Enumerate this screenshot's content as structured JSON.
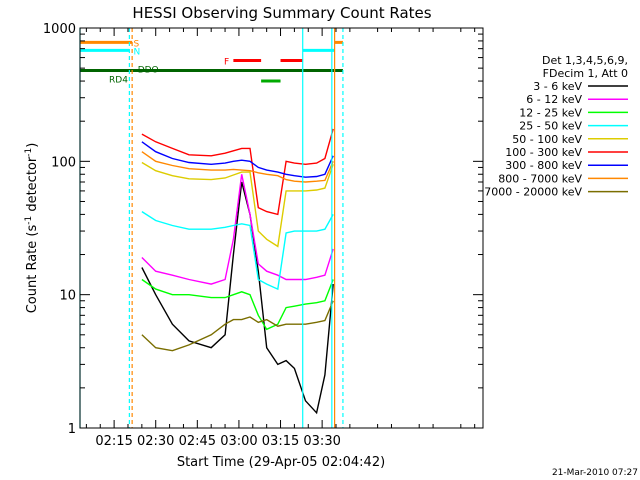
{
  "chart_data": {
    "type": "line",
    "title": "HESSI Observing Summary Count Rates",
    "xlabel": "Start Time (29-Apr-05 02:04:42)",
    "ylabel_main": "Count Rate (s",
    "ylabel_sup": "-1",
    "ylabel_mid": " detector",
    "ylabel_end": ")",
    "yscale": "log",
    "ylim": [
      1,
      1000
    ],
    "xlim_minutes": [
      2.7,
      148.0
    ],
    "x_ticks": [
      {
        "min": 15,
        "label": "02:15"
      },
      {
        "min": 30,
        "label": "02:30"
      },
      {
        "min": 45,
        "label": "02:45"
      },
      {
        "min": 60,
        "label": "03:00"
      },
      {
        "min": 75,
        "label": "03:15"
      },
      {
        "min": 90,
        "label": "03:30"
      }
    ],
    "y_ticks": [
      {
        "v": 1,
        "label": "1"
      },
      {
        "v": 10,
        "label": "10"
      },
      {
        "v": 100,
        "label": "100"
      },
      {
        "v": 1000,
        "label": "1000"
      }
    ],
    "legend_header": [
      "Det 1,3,4,5,6,9,",
      "FDecim 1, Att 0"
    ],
    "series": [
      {
        "name": "3 - 6 keV",
        "color": "#000000",
        "points": [
          [
            25,
            16
          ],
          [
            30,
            10
          ],
          [
            36,
            6
          ],
          [
            42,
            4.5
          ],
          [
            50,
            4
          ],
          [
            55,
            5
          ],
          [
            58,
            20
          ],
          [
            61,
            70
          ],
          [
            64,
            40
          ],
          [
            67,
            15
          ],
          [
            70,
            4
          ],
          [
            74,
            3
          ],
          [
            77,
            3.2
          ],
          [
            80,
            2.8
          ],
          [
            84,
            1.6
          ],
          [
            88,
            1.3
          ],
          [
            91,
            2.5
          ],
          [
            94,
            12
          ]
        ]
      },
      {
        "name": "6 - 12 keV",
        "color": "#ff00ff",
        "points": [
          [
            25,
            19
          ],
          [
            30,
            15
          ],
          [
            36,
            14
          ],
          [
            42,
            13
          ],
          [
            50,
            12
          ],
          [
            55,
            13
          ],
          [
            58,
            26
          ],
          [
            61,
            80
          ],
          [
            64,
            40
          ],
          [
            67,
            17
          ],
          [
            70,
            15
          ],
          [
            74,
            14
          ],
          [
            77,
            13
          ],
          [
            80,
            13
          ],
          [
            84,
            13
          ],
          [
            88,
            13.5
          ],
          [
            91,
            14
          ],
          [
            94,
            22
          ]
        ]
      },
      {
        "name": "12 - 25 keV",
        "color": "#00ff00",
        "points": [
          [
            25,
            13
          ],
          [
            30,
            11
          ],
          [
            36,
            10
          ],
          [
            42,
            10
          ],
          [
            50,
            9.5
          ],
          [
            55,
            9.5
          ],
          [
            58,
            10
          ],
          [
            61,
            10.5
          ],
          [
            64,
            10
          ],
          [
            67,
            7
          ],
          [
            70,
            5.5
          ],
          [
            74,
            6
          ],
          [
            77,
            8
          ],
          [
            80,
            8.2
          ],
          [
            84,
            8.5
          ],
          [
            88,
            8.7
          ],
          [
            91,
            9
          ],
          [
            94,
            13
          ]
        ]
      },
      {
        "name": "25 - 50 keV",
        "color": "#00ffff",
        "points": [
          [
            25,
            42
          ],
          [
            30,
            36
          ],
          [
            36,
            33
          ],
          [
            42,
            31
          ],
          [
            50,
            31
          ],
          [
            55,
            32
          ],
          [
            58,
            33
          ],
          [
            61,
            34
          ],
          [
            64,
            33
          ],
          [
            67,
            13
          ],
          [
            70,
            12
          ],
          [
            74,
            11
          ],
          [
            77,
            29
          ],
          [
            80,
            30
          ],
          [
            84,
            30
          ],
          [
            88,
            30
          ],
          [
            91,
            31
          ],
          [
            94,
            40
          ]
        ]
      },
      {
        "name": "50 - 100 keV",
        "color": "#ddcc00",
        "points": [
          [
            25,
            98
          ],
          [
            30,
            85
          ],
          [
            36,
            78
          ],
          [
            42,
            74
          ],
          [
            50,
            73
          ],
          [
            55,
            75
          ],
          [
            58,
            79
          ],
          [
            61,
            83
          ],
          [
            64,
            83
          ],
          [
            67,
            30
          ],
          [
            70,
            26
          ],
          [
            74,
            23
          ],
          [
            77,
            60
          ],
          [
            80,
            60
          ],
          [
            84,
            60
          ],
          [
            88,
            61
          ],
          [
            91,
            63
          ],
          [
            94,
            95
          ]
        ]
      },
      {
        "name": "100 - 300 keV",
        "color": "#ff0000",
        "points": [
          [
            25,
            160
          ],
          [
            30,
            140
          ],
          [
            36,
            125
          ],
          [
            42,
            112
          ],
          [
            50,
            110
          ],
          [
            55,
            115
          ],
          [
            58,
            120
          ],
          [
            61,
            125
          ],
          [
            64,
            125
          ],
          [
            67,
            45
          ],
          [
            70,
            42
          ],
          [
            74,
            40
          ],
          [
            77,
            100
          ],
          [
            80,
            97
          ],
          [
            84,
            95
          ],
          [
            88,
            97
          ],
          [
            91,
            105
          ],
          [
            94,
            175
          ]
        ]
      },
      {
        "name": "300 - 800 keV",
        "color": "#0000ff",
        "points": [
          [
            25,
            140
          ],
          [
            30,
            118
          ],
          [
            36,
            105
          ],
          [
            42,
            98
          ],
          [
            50,
            95
          ],
          [
            55,
            97
          ],
          [
            58,
            100
          ],
          [
            61,
            102
          ],
          [
            64,
            100
          ],
          [
            67,
            90
          ],
          [
            70,
            86
          ],
          [
            74,
            83
          ],
          [
            77,
            80
          ],
          [
            80,
            78
          ],
          [
            84,
            76
          ],
          [
            88,
            77
          ],
          [
            91,
            80
          ],
          [
            94,
            110
          ]
        ]
      },
      {
        "name": "800 - 7000 keV",
        "color": "#ff8800",
        "points": [
          [
            25,
            118
          ],
          [
            30,
            100
          ],
          [
            36,
            93
          ],
          [
            42,
            88
          ],
          [
            50,
            86
          ],
          [
            55,
            86
          ],
          [
            58,
            87
          ],
          [
            61,
            86
          ],
          [
            64,
            85
          ],
          [
            67,
            82
          ],
          [
            70,
            80
          ],
          [
            74,
            78
          ],
          [
            77,
            73
          ],
          [
            80,
            71
          ],
          [
            84,
            70
          ],
          [
            88,
            71
          ],
          [
            91,
            72
          ],
          [
            94,
            100
          ]
        ]
      },
      {
        "name": "7000 - 20000 keV",
        "color": "#7a6e00",
        "points": [
          [
            25,
            5
          ],
          [
            30,
            4
          ],
          [
            36,
            3.8
          ],
          [
            42,
            4.2
          ],
          [
            50,
            5
          ],
          [
            55,
            6
          ],
          [
            58,
            6.5
          ],
          [
            61,
            6.5
          ],
          [
            64,
            6.8
          ],
          [
            67,
            6.2
          ],
          [
            70,
            6.5
          ],
          [
            74,
            5.8
          ],
          [
            77,
            6
          ],
          [
            80,
            6
          ],
          [
            84,
            6
          ],
          [
            88,
            6.2
          ],
          [
            91,
            6.4
          ],
          [
            94,
            9
          ]
        ]
      }
    ],
    "state_bars": [
      {
        "label": "S",
        "color": "#ff8800",
        "level": 780,
        "segments": [
          [
            2.7,
            21.5
          ],
          [
            94.5,
            97.5
          ]
        ]
      },
      {
        "label": "N",
        "color": "#00ffff",
        "level": 680,
        "segments": [
          [
            2.7,
            20.5
          ],
          [
            83,
            94.5
          ]
        ]
      },
      {
        "label": "F",
        "color": "#ff0000",
        "level": 570,
        "segments": [
          [
            58,
            68
          ],
          [
            75,
            83
          ]
        ]
      },
      {
        "label": "RD4",
        "color": "#006400",
        "level": 480,
        "segments": [
          [
            2.7,
            97.5
          ]
        ]
      },
      {
        "label": "",
        "color": "#00aa00",
        "level": 400,
        "segments": [
          [
            68,
            75
          ]
        ]
      }
    ],
    "vertical_lines": [
      {
        "min": 2.7,
        "color": "#00ffff",
        "dashed": false
      },
      {
        "min": 20.5,
        "color": "#00ffff",
        "dashed": true
      },
      {
        "min": 21.5,
        "color": "#ff8800",
        "dashed": true
      },
      {
        "min": 83,
        "color": "#00ffff",
        "dashed": false
      },
      {
        "min": 93.5,
        "color": "#00ffff",
        "dashed": false
      },
      {
        "min": 94.5,
        "color": "#ff8800",
        "dashed": false
      },
      {
        "min": 97.5,
        "color": "#00ffff",
        "dashed": true
      }
    ],
    "bar_labels": [
      {
        "text": "S",
        "color": "#ff8800"
      },
      {
        "text": "N",
        "color": "#00ffff"
      },
      {
        "text": "F",
        "color": "#ff0000"
      },
      {
        "text": "RD4",
        "color": "#006400"
      },
      {
        "text": "DDO",
        "color": "#006400"
      }
    ]
  },
  "footer": {
    "timestamp": "21-Mar-2010 07:27"
  }
}
